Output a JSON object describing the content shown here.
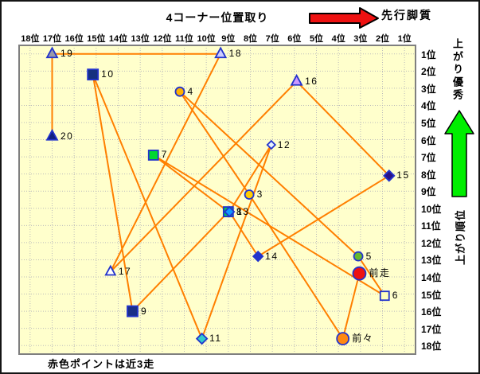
{
  "title": "4コーナー位置取り",
  "legend": {
    "pace_arrow_label": "先行脚質",
    "agari_top_label": "上がり優秀",
    "agari_axis_label": "上がり順位",
    "footnote": "赤色ポイントは近3走"
  },
  "colors": {
    "plot_bg": "#ffffcc",
    "grid": "#bbbbbb",
    "plot_border": "#7f7f7f",
    "line": "#ff7f00",
    "marker_border": "#2233cc",
    "red_arrow": "#ee1111",
    "green_arrow": "#00ee00",
    "arrow_outline": "#000000"
  },
  "chart_data": {
    "type": "scatter",
    "x_axis": {
      "labels": [
        "18位",
        "17位",
        "16位",
        "15位",
        "14位",
        "13位",
        "12位",
        "11位",
        "10位",
        "9位",
        "8位",
        "7位",
        "6位",
        "5位",
        "4位",
        "3位",
        "2位",
        "1位"
      ]
    },
    "y_axis": {
      "labels": [
        "1位",
        "2位",
        "3位",
        "4位",
        "5位",
        "6位",
        "7位",
        "8位",
        "9位",
        "10位",
        "11位",
        "12位",
        "13位",
        "14位",
        "15位",
        "16位",
        "17位",
        "18位"
      ]
    },
    "points": [
      {
        "label": "前走",
        "pos": 3.05,
        "rank": 13.8,
        "shape": "circle",
        "fill": "#ee1111",
        "size": 16
      },
      {
        "label": "前々",
        "pos": 3.8,
        "rank": 17.6,
        "shape": "circle",
        "fill": "#ff8811",
        "size": 15
      },
      {
        "label": "3",
        "pos": 8.05,
        "rank": 9.2,
        "shape": "circle",
        "fill": "#ffcc00",
        "size": 11
      },
      {
        "label": "4",
        "pos": 11.2,
        "rank": 3.2,
        "shape": "circle",
        "fill": "#ffb100",
        "size": 11
      },
      {
        "label": "5",
        "pos": 3.1,
        "rank": 12.8,
        "shape": "circle",
        "fill": "#66b82e",
        "size": 11
      },
      {
        "label": "6",
        "pos": 1.9,
        "rank": 15.1,
        "shape": "square",
        "fill": "#ffffbb",
        "size": 11
      },
      {
        "label": "7",
        "pos": 12.4,
        "rank": 6.9,
        "shape": "square",
        "fill": "#00d830",
        "size": 12
      },
      {
        "label": "8",
        "pos": 9.0,
        "rank": 10.2,
        "shape": "square",
        "fill": "#00cc55",
        "size": 12
      },
      {
        "label": "9",
        "pos": 13.35,
        "rank": 16.0,
        "shape": "square",
        "fill": "#1a2f88",
        "size": 13
      },
      {
        "label": "10",
        "pos": 15.15,
        "rank": 2.2,
        "shape": "square",
        "fill": "#14317f",
        "size": 13
      },
      {
        "label": "11",
        "pos": 10.2,
        "rank": 17.6,
        "shape": "diamond",
        "fill": "#33cccc",
        "size": 11
      },
      {
        "label": "12",
        "pos": 7.05,
        "rank": 6.3,
        "shape": "diamond",
        "fill": "#e6f2ff",
        "size": 8
      },
      {
        "label": "13",
        "pos": 8.95,
        "rank": 10.2,
        "shape": "diamond",
        "fill": "#1199ff",
        "size": 10
      },
      {
        "label": "14",
        "pos": 7.65,
        "rank": 12.8,
        "shape": "diamond",
        "fill": "#2233cc",
        "size": 10
      },
      {
        "label": "15",
        "pos": 1.7,
        "rank": 8.1,
        "shape": "diamond",
        "fill": "#2a1188",
        "size": 11
      },
      {
        "label": "16",
        "pos": 5.9,
        "rank": 2.6,
        "shape": "triangle",
        "fill": "#cc99ff",
        "size": 13
      },
      {
        "label": "17",
        "pos": 14.35,
        "rank": 13.7,
        "shape": "triangle",
        "fill": "#ffffff",
        "size": 12
      },
      {
        "label": "18",
        "pos": 9.35,
        "rank": 1.0,
        "shape": "triangle",
        "fill": "#ccccff",
        "size": 13
      },
      {
        "label": "19",
        "pos": 17.0,
        "rank": 1.0,
        "shape": "triangle",
        "fill": "#9999aa",
        "size": 13
      },
      {
        "label": "20",
        "pos": 17.0,
        "rank": 5.8,
        "shape": "triangle",
        "fill": "#102080",
        "size": 13
      }
    ]
  }
}
